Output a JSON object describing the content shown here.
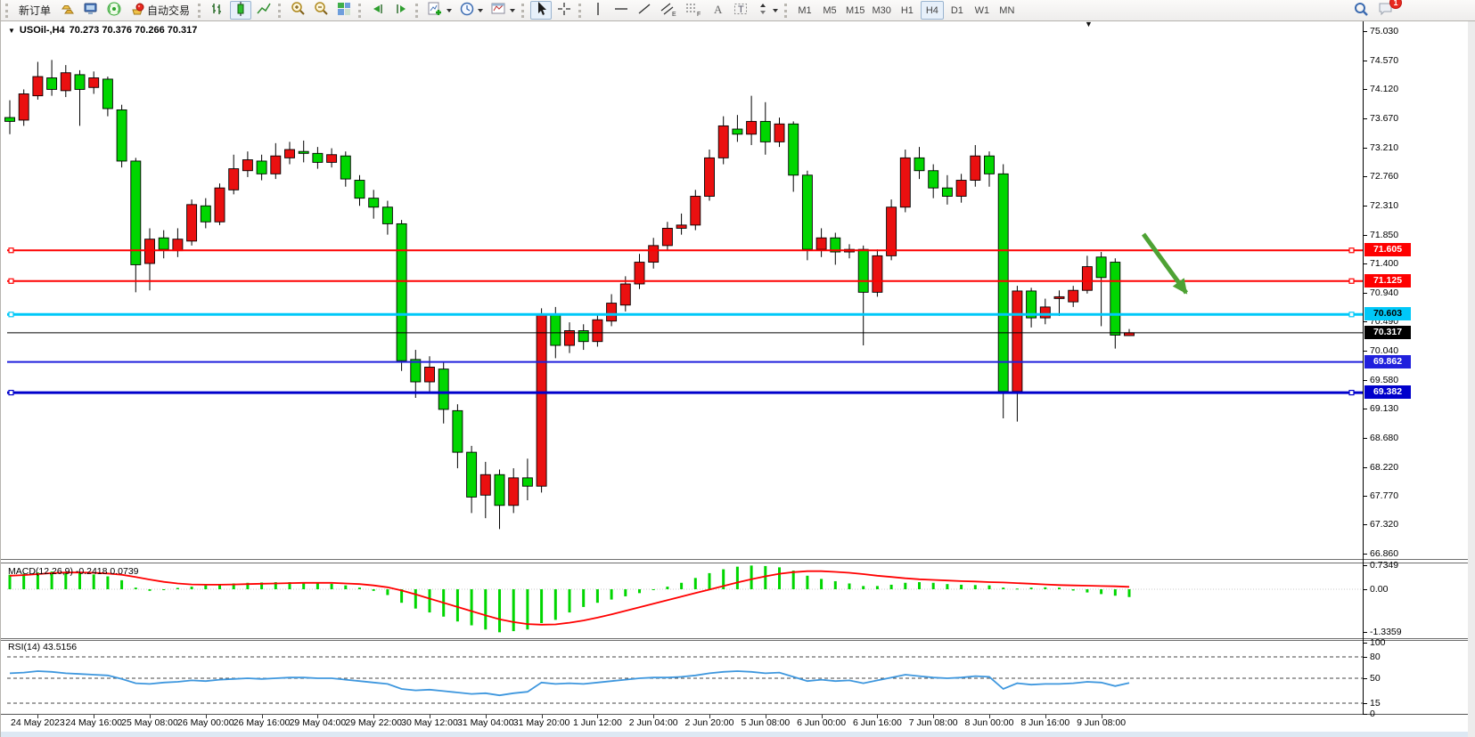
{
  "toolbar": {
    "new_order_label": "新订单",
    "auto_trading_label": "自动交易",
    "tool_letters": {
      "channel": "E",
      "fibo": "F",
      "text": "A",
      "label": "T"
    },
    "timeframes": [
      "M1",
      "M5",
      "M15",
      "M30",
      "H1",
      "H4",
      "D1",
      "W1",
      "MN"
    ],
    "active_timeframe": "H4",
    "notification_count": "1",
    "icons": [
      "gold-ingots",
      "terminal",
      "broadcast",
      "auto-trading",
      "ohlc-bars",
      "candlesticks",
      "line-chart",
      "zoom-in",
      "zoom-out",
      "tile-windows",
      "auto-scroll",
      "chart-shift",
      "new-chart",
      "profiles-clock",
      "templates",
      "cursor",
      "crosshair",
      "vertical-line",
      "horizontal-line",
      "trendline",
      "equidistant-channel",
      "fibonacci",
      "text",
      "text-label",
      "arrows",
      "search",
      "chat"
    ]
  },
  "chart": {
    "dropdown_marker": "▼",
    "symbol_title": "USOil-,H4",
    "ohlc_text": "70.273 70.376 70.266 70.317",
    "macd_label": "MACD(12,26,9) -0.2418 0.0739",
    "rsi_label": "RSI(14) 43.5156",
    "shift_marker": "▼"
  },
  "colors": {
    "candle_up": "#ea1010",
    "candle_down": "#00d600",
    "resistance_line": "#fe0000",
    "pivot_line": "#00c8f8",
    "current_price_line": "#000000",
    "support_line_1": "#2020dd",
    "support_line_2": "#0000cc",
    "macd_histogram": "#00d600",
    "macd_signal": "#ff0000",
    "rsi_line": "#3e97de",
    "trend_arrow": "#4ea234"
  },
  "chart_data": [
    {
      "type": "candlestick",
      "symbol": "USOil-",
      "timeframe": "H4",
      "current_ohlc": {
        "open": 70.273,
        "high": 70.376,
        "low": 70.266,
        "close": 70.317
      },
      "y_ticks": [
        "75.030",
        "74.570",
        "74.120",
        "73.670",
        "73.210",
        "72.760",
        "72.310",
        "71.850",
        "71.400",
        "70.940",
        "70.490",
        "70.040",
        "69.580",
        "69.130",
        "68.680",
        "68.220",
        "67.770",
        "67.320",
        "66.860"
      ],
      "x_labels": [
        "24 May 2023",
        "24 May 16:00",
        "25 May 08:00",
        "26 May 00:00",
        "26 May 16:00",
        "29 May 04:00",
        "29 May 22:00",
        "30 May 12:00",
        "31 May 04:00",
        "31 May 20:00",
        "1 Jun 12:00",
        "2 Jun 04:00",
        "2 Jun 20:00",
        "5 Jun 08:00",
        "6 Jun 00:00",
        "6 Jun 16:00",
        "7 Jun 08:00",
        "8 Jun 00:00",
        "8 Jun 16:00",
        "9 Jun 08:00"
      ],
      "candles_ohlc": [
        [
          73.68,
          73.95,
          73.42,
          73.62
        ],
        [
          73.64,
          74.12,
          73.55,
          74.05
        ],
        [
          74.02,
          74.55,
          73.96,
          74.32
        ],
        [
          74.3,
          74.58,
          74.02,
          74.12
        ],
        [
          74.1,
          74.5,
          74.0,
          74.38
        ],
        [
          74.35,
          74.42,
          73.55,
          74.12
        ],
        [
          74.15,
          74.4,
          74.05,
          74.3
        ],
        [
          74.28,
          74.32,
          73.7,
          73.82
        ],
        [
          73.8,
          73.88,
          72.9,
          73.0
        ],
        [
          73.0,
          73.05,
          70.95,
          71.38
        ],
        [
          71.4,
          71.95,
          70.98,
          71.78
        ],
        [
          71.8,
          71.92,
          71.48,
          71.62
        ],
        [
          71.6,
          71.95,
          71.5,
          71.78
        ],
        [
          71.75,
          72.4,
          71.68,
          72.32
        ],
        [
          72.3,
          72.42,
          71.95,
          72.05
        ],
        [
          72.05,
          72.65,
          72.0,
          72.58
        ],
        [
          72.55,
          73.1,
          72.48,
          72.88
        ],
        [
          72.85,
          73.15,
          72.75,
          73.02
        ],
        [
          73.0,
          73.1,
          72.7,
          72.8
        ],
        [
          72.8,
          73.28,
          72.72,
          73.08
        ],
        [
          73.05,
          73.3,
          72.95,
          73.18
        ],
        [
          73.15,
          73.32,
          72.98,
          73.12
        ],
        [
          73.12,
          73.22,
          72.88,
          72.98
        ],
        [
          72.98,
          73.2,
          72.9,
          73.1
        ],
        [
          73.08,
          73.15,
          72.6,
          72.72
        ],
        [
          72.7,
          72.78,
          72.3,
          72.42
        ],
        [
          72.42,
          72.55,
          72.1,
          72.28
        ],
        [
          72.28,
          72.38,
          71.85,
          72.02
        ],
        [
          72.02,
          72.08,
          69.72,
          69.88
        ],
        [
          69.9,
          70.05,
          69.3,
          69.55
        ],
        [
          69.55,
          69.95,
          69.4,
          69.78
        ],
        [
          69.75,
          69.85,
          68.9,
          69.12
        ],
        [
          69.1,
          69.2,
          68.2,
          68.45
        ],
        [
          68.45,
          68.55,
          67.5,
          67.75
        ],
        [
          67.78,
          68.3,
          67.42,
          68.1
        ],
        [
          68.1,
          68.18,
          67.25,
          67.62
        ],
        [
          67.62,
          68.2,
          67.5,
          68.05
        ],
        [
          68.05,
          68.35,
          67.7,
          67.92
        ],
        [
          67.92,
          70.7,
          67.82,
          70.6
        ],
        [
          70.6,
          70.72,
          69.92,
          70.12
        ],
        [
          70.12,
          70.48,
          70.0,
          70.35
        ],
        [
          70.35,
          70.45,
          70.05,
          70.18
        ],
        [
          70.18,
          70.62,
          70.1,
          70.52
        ],
        [
          70.5,
          70.92,
          70.42,
          70.78
        ],
        [
          70.75,
          71.2,
          70.65,
          71.08
        ],
        [
          71.08,
          71.55,
          71.0,
          71.42
        ],
        [
          71.42,
          71.8,
          71.32,
          71.68
        ],
        [
          71.68,
          72.05,
          71.6,
          71.95
        ],
        [
          71.95,
          72.18,
          71.85,
          72.0
        ],
        [
          72.0,
          72.55,
          71.92,
          72.45
        ],
        [
          72.45,
          73.18,
          72.38,
          73.05
        ],
        [
          73.05,
          73.7,
          72.95,
          73.55
        ],
        [
          73.5,
          73.72,
          73.3,
          73.42
        ],
        [
          73.42,
          74.02,
          73.25,
          73.62
        ],
        [
          73.62,
          73.92,
          73.1,
          73.3
        ],
        [
          73.3,
          73.68,
          73.22,
          73.58
        ],
        [
          73.58,
          73.62,
          72.52,
          72.78
        ],
        [
          72.78,
          72.85,
          71.45,
          71.62
        ],
        [
          71.62,
          71.95,
          71.5,
          71.8
        ],
        [
          71.8,
          71.88,
          71.38,
          71.58
        ],
        [
          71.58,
          71.7,
          71.48,
          71.62
        ],
        [
          71.62,
          71.68,
          70.12,
          70.95
        ],
        [
          70.95,
          71.62,
          70.88,
          71.52
        ],
        [
          71.52,
          72.4,
          71.45,
          72.28
        ],
        [
          72.28,
          73.18,
          72.2,
          73.05
        ],
        [
          73.05,
          73.22,
          72.72,
          72.85
        ],
        [
          72.85,
          72.95,
          72.42,
          72.58
        ],
        [
          72.58,
          72.78,
          72.32,
          72.45
        ],
        [
          72.45,
          72.8,
          72.35,
          72.7
        ],
        [
          72.7,
          73.25,
          72.6,
          73.08
        ],
        [
          73.08,
          73.15,
          72.6,
          72.8
        ],
        [
          72.8,
          72.95,
          68.98,
          69.4
        ],
        [
          69.4,
          71.05,
          68.93,
          70.97
        ],
        [
          70.97,
          71.02,
          70.4,
          70.55
        ],
        [
          70.55,
          70.85,
          70.45,
          70.72
        ],
        [
          70.86,
          70.98,
          70.58,
          70.88
        ],
        [
          70.8,
          71.05,
          70.72,
          70.98
        ],
        [
          70.98,
          71.52,
          70.93,
          71.35
        ],
        [
          71.5,
          71.58,
          70.42,
          71.18
        ],
        [
          71.42,
          71.48,
          70.07,
          70.28
        ],
        [
          70.273,
          70.376,
          70.266,
          70.317
        ]
      ],
      "hlines": [
        {
          "price": 71.605,
          "label": "71.605",
          "color": "#fe0000",
          "line_width": 2,
          "handles": true,
          "badge_text_color": "#ffffff"
        },
        {
          "price": 71.125,
          "label": "71.125",
          "color": "#fe0000",
          "line_width": 2,
          "handles": true,
          "badge_text_color": "#ffffff"
        },
        {
          "price": 70.603,
          "label": "70.603",
          "color": "#00c8f8",
          "line_width": 3,
          "handles": true,
          "badge_text_color": "#000000"
        },
        {
          "price": 70.317,
          "label": "70.317",
          "color": "#000000",
          "line_width": 1,
          "handles": false,
          "badge_text_color": "#ffffff",
          "role": "current-price"
        },
        {
          "price": 69.862,
          "label": "69.862",
          "color": "#2020dd",
          "line_width": 2,
          "handles": false,
          "badge_text_color": "#ffffff"
        },
        {
          "price": 69.382,
          "label": "69.382",
          "color": "#0000cc",
          "line_width": 3,
          "handles": true,
          "badge_text_color": "#ffffff"
        }
      ],
      "current_price": 70.317,
      "trend_arrow": {
        "direction": "down-right",
        "color": "#4ea234"
      }
    },
    {
      "type": "bar",
      "name": "MACD(12,26,9)",
      "main_value": -0.2418,
      "signal_value": 0.0739,
      "y_ticks": [
        "0.7349",
        "0.00",
        "-1.3359"
      ],
      "histogram": [
        0.45,
        0.48,
        0.52,
        0.55,
        0.53,
        0.5,
        0.46,
        0.4,
        0.28,
        0.05,
        -0.05,
        0.0,
        0.04,
        0.08,
        0.12,
        0.15,
        0.18,
        0.2,
        0.21,
        0.22,
        0.22,
        0.21,
        0.2,
        0.17,
        0.12,
        0.05,
        -0.05,
        -0.18,
        -0.42,
        -0.6,
        -0.72,
        -0.85,
        -1.0,
        -1.12,
        -1.25,
        -1.3359,
        -1.3,
        -1.25,
        -1.05,
        -0.95,
        -0.72,
        -0.55,
        -0.42,
        -0.32,
        -0.22,
        -0.12,
        -0.02,
        0.08,
        0.2,
        0.35,
        0.5,
        0.62,
        0.7,
        0.7349,
        0.72,
        0.68,
        0.58,
        0.42,
        0.32,
        0.25,
        0.18,
        0.1,
        0.1,
        0.14,
        0.2,
        0.22,
        0.2,
        0.16,
        0.14,
        0.13,
        0.12,
        0.05,
        0.02,
        0.05,
        0.06,
        0.05,
        -0.04,
        -0.1,
        -0.15,
        -0.2,
        -0.2418
      ],
      "signal": [
        0.42,
        0.44,
        0.47,
        0.5,
        0.52,
        0.52,
        0.51,
        0.49,
        0.45,
        0.38,
        0.3,
        0.23,
        0.18,
        0.15,
        0.14,
        0.14,
        0.15,
        0.16,
        0.17,
        0.18,
        0.19,
        0.2,
        0.2,
        0.2,
        0.18,
        0.16,
        0.12,
        0.06,
        -0.04,
        -0.16,
        -0.29,
        -0.42,
        -0.55,
        -0.68,
        -0.81,
        -0.93,
        -1.02,
        -1.08,
        -1.1,
        -1.09,
        -1.04,
        -0.97,
        -0.88,
        -0.78,
        -0.67,
        -0.56,
        -0.45,
        -0.34,
        -0.23,
        -0.12,
        -0.01,
        0.1,
        0.21,
        0.31,
        0.4,
        0.48,
        0.53,
        0.56,
        0.56,
        0.54,
        0.51,
        0.47,
        0.42,
        0.38,
        0.34,
        0.31,
        0.29,
        0.27,
        0.25,
        0.24,
        0.22,
        0.21,
        0.19,
        0.17,
        0.15,
        0.13,
        0.12,
        0.11,
        0.1,
        0.09,
        0.0739
      ]
    },
    {
      "type": "line",
      "name": "RSI(14)",
      "value": 43.5156,
      "y_ticks": [
        "100",
        "80",
        "50",
        "15",
        "0"
      ],
      "levels": [
        80,
        50,
        15
      ],
      "values": [
        57,
        58,
        60,
        59,
        57,
        56,
        55,
        54,
        49,
        43,
        42,
        44,
        45,
        47,
        46,
        48,
        49,
        50,
        49,
        50,
        51,
        51,
        50,
        50,
        48,
        46,
        44,
        42,
        35,
        33,
        34,
        32,
        30,
        28,
        29,
        26,
        29,
        31,
        44,
        42,
        43,
        42,
        44,
        46,
        48,
        50,
        51,
        51,
        52,
        54,
        57,
        59,
        60,
        59,
        57,
        58,
        52,
        46,
        48,
        46,
        47,
        43,
        47,
        51,
        55,
        53,
        51,
        50,
        51,
        53,
        52,
        35,
        43,
        41,
        42,
        42,
        43,
        45,
        44,
        39,
        43.5156
      ]
    }
  ]
}
